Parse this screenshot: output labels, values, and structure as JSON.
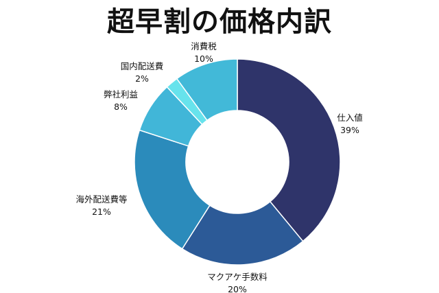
{
  "chart_data": {
    "type": "pie",
    "title": "超早割の価格内訳",
    "donut": true,
    "start": "top",
    "direction": "clockwise",
    "slices": [
      {
        "label": "仕入値",
        "value": 39,
        "value_label": "39%",
        "color": "#2f346a"
      },
      {
        "label": "マクアケ手数料",
        "value": 20,
        "value_label": "20%",
        "color": "#2c5a97"
      },
      {
        "label": "海外配送費等",
        "value": 21,
        "value_label": "21%",
        "color": "#2b8bbb"
      },
      {
        "label": "弊社利益",
        "value": 8,
        "value_label": "8%",
        "color": "#41b6d8"
      },
      {
        "label": "国内配送費",
        "value": 2,
        "value_label": "2%",
        "color": "#67e3ec"
      },
      {
        "label": "消費税",
        "value": 10,
        "value_label": "10%",
        "color": "#42b9d8"
      }
    ]
  }
}
